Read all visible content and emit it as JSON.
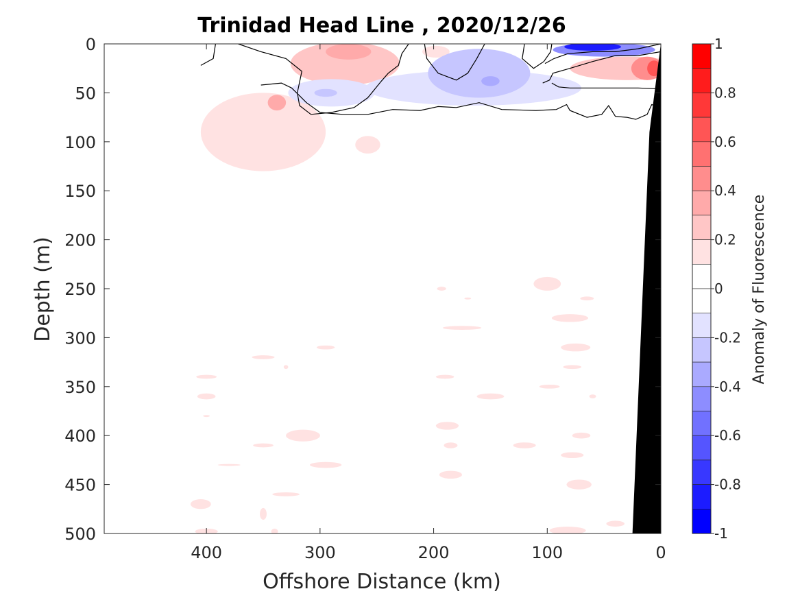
{
  "chart_data": {
    "type": "heatmap",
    "title": "Trinidad Head Line , 2020/12/26",
    "xlabel": "Offshore Distance (km)",
    "ylabel": "Depth (m)",
    "colorbar_label": "Anomaly of Fluorescence",
    "xlim": [
      490,
      0
    ],
    "ylim": [
      0,
      500
    ],
    "x_ticks": [
      400,
      300,
      200,
      100,
      0
    ],
    "x_tick_labels": [
      "400",
      "300",
      "200",
      "100",
      "0"
    ],
    "y_ticks": [
      0,
      50,
      100,
      150,
      200,
      250,
      300,
      350,
      400,
      450,
      500
    ],
    "y_tick_labels": [
      "0",
      "50",
      "100",
      "150",
      "200",
      "250",
      "300",
      "350",
      "400",
      "450",
      "500"
    ],
    "clim": [
      -1,
      1
    ],
    "colorbar_ticks": [
      1,
      0.8,
      0.6,
      0.4,
      0.2,
      0,
      -0.2,
      -0.4,
      -0.6,
      -0.8,
      -1
    ],
    "colorbar_tick_labels": [
      "1",
      "0.8",
      "0.6",
      "0.4",
      "0.2",
      "0",
      "-0.2",
      "-0.4",
      "-0.6",
      "-0.8",
      "-1"
    ],
    "colorbar_levels": [
      {
        "range": [
          0.9,
          1.0
        ],
        "color": "#ff0000"
      },
      {
        "range": [
          0.8,
          0.9
        ],
        "color": "#ff1c1c"
      },
      {
        "range": [
          0.7,
          0.8
        ],
        "color": "#ff3838"
      },
      {
        "range": [
          0.6,
          0.7
        ],
        "color": "#ff5555"
      },
      {
        "range": [
          0.5,
          0.6
        ],
        "color": "#ff7171"
      },
      {
        "range": [
          0.4,
          0.5
        ],
        "color": "#ff8d8d"
      },
      {
        "range": [
          0.3,
          0.4
        ],
        "color": "#ffaaaa"
      },
      {
        "range": [
          0.2,
          0.3
        ],
        "color": "#ffc6c6"
      },
      {
        "range": [
          0.1,
          0.2
        ],
        "color": "#ffe2e2"
      },
      {
        "range": [
          0.0,
          0.1
        ],
        "color": "#ffffff"
      },
      {
        "range": [
          -0.1,
          0.0
        ],
        "color": "#ffffff"
      },
      {
        "range": [
          -0.2,
          -0.1
        ],
        "color": "#e2e2ff"
      },
      {
        "range": [
          -0.3,
          -0.2
        ],
        "color": "#c6c6ff"
      },
      {
        "range": [
          -0.4,
          -0.3
        ],
        "color": "#aaaaff"
      },
      {
        "range": [
          -0.5,
          -0.4
        ],
        "color": "#8d8dff"
      },
      {
        "range": [
          -0.6,
          -0.5
        ],
        "color": "#7171ff"
      },
      {
        "range": [
          -0.7,
          -0.6
        ],
        "color": "#5555ff"
      },
      {
        "range": [
          -0.8,
          -0.7
        ],
        "color": "#3838ff"
      },
      {
        "range": [
          -0.9,
          -0.8
        ],
        "color": "#1c1cff"
      },
      {
        "range": [
          -1.0,
          -0.9
        ],
        "color": "#0000ff"
      }
    ],
    "anomaly_patches": [
      {
        "x": 350,
        "y": 90,
        "rx": 55,
        "ry": 40,
        "value": 0.15
      },
      {
        "x": 338,
        "y": 60,
        "rx": 8,
        "ry": 8,
        "value": 0.3
      },
      {
        "x": 322,
        "y": 100,
        "rx": 5,
        "ry": 2,
        "value": 0.15
      },
      {
        "x": 258,
        "y": 103,
        "rx": 11,
        "ry": 9,
        "value": 0.15
      },
      {
        "x": 278,
        "y": 20,
        "rx": 48,
        "ry": 22,
        "value": 0.2
      },
      {
        "x": 275,
        "y": 8,
        "rx": 20,
        "ry": 8,
        "value": 0.35
      },
      {
        "x": 198,
        "y": 8,
        "rx": 12,
        "ry": 6,
        "value": 0.15
      },
      {
        "x": 290,
        "y": 50,
        "rx": 38,
        "ry": 14,
        "value": -0.15
      },
      {
        "x": 295,
        "y": 50,
        "rx": 10,
        "ry": 4,
        "value": -0.3
      },
      {
        "x": 165,
        "y": 45,
        "rx": 95,
        "ry": 18,
        "value": -0.15
      },
      {
        "x": 160,
        "y": 30,
        "rx": 45,
        "ry": 25,
        "value": -0.25
      },
      {
        "x": 150,
        "y": 38,
        "rx": 8,
        "ry": 5,
        "value": -0.35
      },
      {
        "x": 50,
        "y": 6,
        "rx": 45,
        "ry": 7,
        "value": -0.5
      },
      {
        "x": 60,
        "y": 3,
        "rx": 25,
        "ry": 4,
        "value": -0.85
      },
      {
        "x": 30,
        "y": 25,
        "rx": 50,
        "ry": 12,
        "value": 0.2
      },
      {
        "x": 12,
        "y": 25,
        "rx": 14,
        "ry": 12,
        "value": 0.45
      },
      {
        "x": 6,
        "y": 25,
        "rx": 6,
        "ry": 8,
        "value": 0.6
      },
      {
        "x": 100,
        "y": 245,
        "rx": 12,
        "ry": 7,
        "value": 0.15
      },
      {
        "x": 80,
        "y": 280,
        "rx": 16,
        "ry": 4,
        "value": 0.15
      },
      {
        "x": 65,
        "y": 260,
        "rx": 6,
        "ry": 2,
        "value": 0.15
      },
      {
        "x": 75,
        "y": 310,
        "rx": 13,
        "ry": 4,
        "value": 0.15
      },
      {
        "x": 78,
        "y": 330,
        "rx": 8,
        "ry": 2,
        "value": 0.15
      },
      {
        "x": 98,
        "y": 350,
        "rx": 9,
        "ry": 2,
        "value": 0.15
      },
      {
        "x": 60,
        "y": 360,
        "rx": 3,
        "ry": 2,
        "value": 0.15
      },
      {
        "x": 70,
        "y": 400,
        "rx": 8,
        "ry": 3,
        "value": 0.15
      },
      {
        "x": 78,
        "y": 420,
        "rx": 10,
        "ry": 3,
        "value": 0.15
      },
      {
        "x": 72,
        "y": 450,
        "rx": 11,
        "ry": 5,
        "value": 0.15
      },
      {
        "x": 82,
        "y": 497,
        "rx": 16,
        "ry": 4,
        "value": 0.15
      },
      {
        "x": 40,
        "y": 490,
        "rx": 8,
        "ry": 3,
        "value": 0.15
      },
      {
        "x": 120,
        "y": 410,
        "rx": 10,
        "ry": 3,
        "value": 0.15
      },
      {
        "x": 188,
        "y": 390,
        "rx": 10,
        "ry": 4,
        "value": 0.15
      },
      {
        "x": 185,
        "y": 410,
        "rx": 6,
        "ry": 3,
        "value": 0.15
      },
      {
        "x": 185,
        "y": 440,
        "rx": 10,
        "ry": 4,
        "value": 0.15
      },
      {
        "x": 150,
        "y": 360,
        "rx": 12,
        "ry": 3,
        "value": 0.15
      },
      {
        "x": 190,
        "y": 340,
        "rx": 8,
        "ry": 2,
        "value": 0.15
      },
      {
        "x": 175,
        "y": 290,
        "rx": 17,
        "ry": 2,
        "value": 0.15
      },
      {
        "x": 193,
        "y": 250,
        "rx": 4,
        "ry": 2,
        "value": 0.15
      },
      {
        "x": 170,
        "y": 260,
        "rx": 3,
        "ry": 1,
        "value": 0.15
      },
      {
        "x": 295,
        "y": 310,
        "rx": 8,
        "ry": 2,
        "value": 0.15
      },
      {
        "x": 350,
        "y": 320,
        "rx": 10,
        "ry": 2,
        "value": 0.15
      },
      {
        "x": 330,
        "y": 330,
        "rx": 2,
        "ry": 2,
        "value": 0.15
      },
      {
        "x": 400,
        "y": 340,
        "rx": 9,
        "ry": 2,
        "value": 0.15
      },
      {
        "x": 400,
        "y": 360,
        "rx": 8,
        "ry": 3,
        "value": 0.15
      },
      {
        "x": 400,
        "y": 380,
        "rx": 3,
        "ry": 1,
        "value": 0.15
      },
      {
        "x": 315,
        "y": 400,
        "rx": 15,
        "ry": 6,
        "value": 0.15
      },
      {
        "x": 350,
        "y": 410,
        "rx": 9,
        "ry": 2,
        "value": 0.15
      },
      {
        "x": 295,
        "y": 430,
        "rx": 14,
        "ry": 3,
        "value": 0.15
      },
      {
        "x": 380,
        "y": 430,
        "rx": 10,
        "ry": 1,
        "value": 0.15
      },
      {
        "x": 330,
        "y": 460,
        "rx": 12,
        "ry": 2,
        "value": 0.15
      },
      {
        "x": 405,
        "y": 470,
        "rx": 9,
        "ry": 5,
        "value": 0.15
      },
      {
        "x": 350,
        "y": 480,
        "rx": 3,
        "ry": 6,
        "value": 0.15
      },
      {
        "x": 400,
        "y": 498,
        "rx": 10,
        "ry": 3,
        "value": 0.15
      },
      {
        "x": 340,
        "y": 498,
        "rx": 3,
        "ry": 3,
        "value": 0.15
      }
    ],
    "zero_contours": [
      [
        [
          405,
          22
        ],
        [
          394,
          15
        ],
        [
          392,
          0
        ]
      ],
      [
        [
          372,
          0
        ],
        [
          352,
          8
        ],
        [
          330,
          15
        ],
        [
          316,
          28
        ],
        [
          320,
          50
        ],
        [
          318,
          63
        ],
        [
          308,
          72
        ],
        [
          290,
          70
        ],
        [
          270,
          65
        ],
        [
          258,
          55
        ],
        [
          246,
          38
        ],
        [
          240,
          30
        ],
        [
          231,
          22
        ],
        [
          228,
          10
        ],
        [
          222,
          0
        ]
      ],
      [
        [
          208,
          0
        ],
        [
          206,
          15
        ],
        [
          196,
          30
        ],
        [
          180,
          37
        ],
        [
          170,
          30
        ],
        [
          162,
          15
        ],
        [
          155,
          0
        ]
      ],
      [
        [
          120,
          0
        ],
        [
          122,
          15
        ],
        [
          112,
          25
        ],
        [
          103,
          18
        ],
        [
          97,
          8
        ],
        [
          96,
          0
        ]
      ],
      [
        [
          352,
          42
        ],
        [
          334,
          40
        ],
        [
          325,
          45
        ],
        [
          318,
          53
        ],
        [
          312,
          60
        ],
        [
          300,
          70
        ],
        [
          280,
          72
        ],
        [
          258,
          72
        ],
        [
          236,
          67
        ],
        [
          212,
          68
        ],
        [
          196,
          64
        ],
        [
          180,
          65
        ],
        [
          160,
          60
        ],
        [
          140,
          67
        ],
        [
          110,
          68
        ],
        [
          92,
          67
        ],
        [
          83,
          62
        ],
        [
          80,
          68
        ],
        [
          65,
          75
        ],
        [
          52,
          72
        ],
        [
          46,
          63
        ],
        [
          40,
          74
        ],
        [
          30,
          75
        ],
        [
          22,
          77
        ],
        [
          12,
          72
        ],
        [
          8,
          62
        ],
        [
          0,
          65
        ]
      ],
      [
        [
          102,
          20
        ],
        [
          94,
          15
        ],
        [
          82,
          10
        ],
        [
          60,
          8
        ],
        [
          40,
          8
        ],
        [
          20,
          5
        ],
        [
          0,
          0
        ]
      ],
      [
        [
          104,
          40
        ],
        [
          98,
          37
        ],
        [
          95,
          30
        ],
        [
          80,
          25
        ],
        [
          60,
          18
        ],
        [
          40,
          12
        ],
        [
          20,
          12
        ],
        [
          0,
          8
        ]
      ],
      [
        [
          96,
          40
        ],
        [
          90,
          44
        ],
        [
          80,
          45
        ],
        [
          60,
          45
        ],
        [
          40,
          45
        ],
        [
          20,
          45
        ],
        [
          0,
          46
        ]
      ]
    ],
    "bathymetry": [
      [
        0,
        0
      ],
      [
        10,
        90
      ],
      [
        25,
        500
      ],
      [
        0,
        500
      ]
    ]
  }
}
